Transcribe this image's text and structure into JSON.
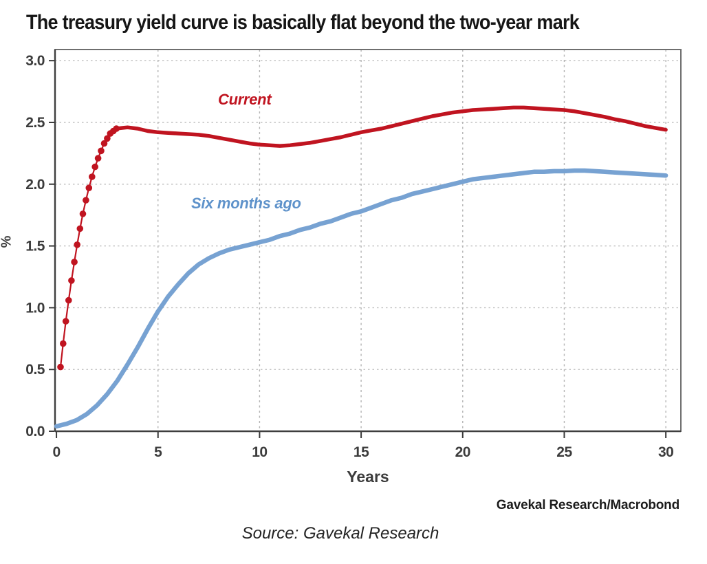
{
  "title": "The treasury yield curve is basically flat beyond the two-year mark",
  "branding": "Gavekal Research/Macrobond",
  "source_caption": "Source: Gavekal Research",
  "colors": {
    "current_red": "#c01420",
    "six_months_blue": "#77a2d2",
    "six_months_label_blue": "#5e92ca",
    "axis_text": "#3c3c3c",
    "gridline": "#b8b8b8"
  },
  "chart_data": {
    "type": "line",
    "title": "The treasury yield curve is basically flat beyond the two-year mark",
    "xlabel": "Years",
    "ylabel": "%",
    "xlim": [
      -0.07,
      30.74
    ],
    "ylim": [
      0,
      3.09
    ],
    "grid": {
      "vertical": "dashed",
      "horizontal": "dotted"
    },
    "legend_position": "inline-annotations",
    "xticks": [
      {
        "v": 0,
        "label": "0"
      },
      {
        "v": 5,
        "label": "5"
      },
      {
        "v": 10,
        "label": "10"
      },
      {
        "v": 15,
        "label": "15"
      },
      {
        "v": 20,
        "label": "20"
      },
      {
        "v": 25,
        "label": "25"
      },
      {
        "v": 30,
        "label": "30"
      }
    ],
    "yticks": [
      {
        "v": 0.0,
        "label": "0.0"
      },
      {
        "v": 0.5,
        "label": "0.5"
      },
      {
        "v": 1.0,
        "label": "1.0"
      },
      {
        "v": 1.5,
        "label": "1.5"
      },
      {
        "v": 2.0,
        "label": "2.0"
      },
      {
        "v": 2.5,
        "label": "2.5"
      },
      {
        "v": 3.0,
        "label": "3.0"
      }
    ],
    "annotations": [
      {
        "text": "Current",
        "color": "#c01420"
      },
      {
        "text": "Six months ago",
        "color": "#5e92ca"
      }
    ],
    "series": [
      {
        "name": "Six months ago",
        "color": "#77a2d2",
        "width": 6.5,
        "points": [
          [
            0,
            0.04
          ],
          [
            0.5,
            0.06
          ],
          [
            1,
            0.09
          ],
          [
            1.5,
            0.14
          ],
          [
            2,
            0.21
          ],
          [
            2.5,
            0.3
          ],
          [
            3,
            0.41
          ],
          [
            3.5,
            0.54
          ],
          [
            4,
            0.68
          ],
          [
            4.5,
            0.83
          ],
          [
            5,
            0.97
          ],
          [
            5.5,
            1.09
          ],
          [
            6,
            1.19
          ],
          [
            6.5,
            1.28
          ],
          [
            7,
            1.35
          ],
          [
            7.5,
            1.4
          ],
          [
            8,
            1.44
          ],
          [
            8.5,
            1.47
          ],
          [
            9,
            1.49
          ],
          [
            9.5,
            1.51
          ],
          [
            10,
            1.53
          ],
          [
            10.5,
            1.55
          ],
          [
            11,
            1.58
          ],
          [
            11.5,
            1.6
          ],
          [
            12,
            1.63
          ],
          [
            12.5,
            1.65
          ],
          [
            13,
            1.68
          ],
          [
            13.5,
            1.7
          ],
          [
            14,
            1.73
          ],
          [
            14.5,
            1.76
          ],
          [
            15,
            1.78
          ],
          [
            15.5,
            1.81
          ],
          [
            16,
            1.84
          ],
          [
            16.5,
            1.87
          ],
          [
            17,
            1.89
          ],
          [
            17.5,
            1.92
          ],
          [
            18,
            1.94
          ],
          [
            18.5,
            1.96
          ],
          [
            19,
            1.98
          ],
          [
            19.5,
            2.0
          ],
          [
            20,
            2.02
          ],
          [
            20.5,
            2.04
          ],
          [
            21,
            2.05
          ],
          [
            21.5,
            2.06
          ],
          [
            22,
            2.07
          ],
          [
            22.5,
            2.08
          ],
          [
            23,
            2.09
          ],
          [
            23.5,
            2.1
          ],
          [
            24,
            2.1
          ],
          [
            24.5,
            2.105
          ],
          [
            25,
            2.105
          ],
          [
            25.5,
            2.11
          ],
          [
            26,
            2.11
          ],
          [
            26.5,
            2.105
          ],
          [
            27,
            2.1
          ],
          [
            27.5,
            2.095
          ],
          [
            28,
            2.09
          ],
          [
            28.5,
            2.085
          ],
          [
            29,
            2.08
          ],
          [
            29.5,
            2.075
          ],
          [
            30,
            2.07
          ]
        ]
      },
      {
        "name": "Current",
        "color": "#c01420",
        "width": 5.5,
        "marker_until": 2.95,
        "marker_r": 4.8,
        "points": [
          [
            0.2,
            0.52
          ],
          [
            0.33,
            0.71
          ],
          [
            0.46,
            0.89
          ],
          [
            0.6,
            1.06
          ],
          [
            0.74,
            1.22
          ],
          [
            0.88,
            1.37
          ],
          [
            1.02,
            1.51
          ],
          [
            1.16,
            1.64
          ],
          [
            1.3,
            1.76
          ],
          [
            1.45,
            1.87
          ],
          [
            1.6,
            1.97
          ],
          [
            1.75,
            2.06
          ],
          [
            1.9,
            2.14
          ],
          [
            2.05,
            2.21
          ],
          [
            2.2,
            2.27
          ],
          [
            2.35,
            2.33
          ],
          [
            2.5,
            2.37
          ],
          [
            2.65,
            2.41
          ],
          [
            2.8,
            2.43
          ],
          [
            2.95,
            2.45
          ],
          [
            3.2,
            2.455
          ],
          [
            3.5,
            2.46
          ],
          [
            4,
            2.45
          ],
          [
            4.5,
            2.43
          ],
          [
            5,
            2.42
          ],
          [
            5.5,
            2.415
          ],
          [
            6,
            2.41
          ],
          [
            6.5,
            2.405
          ],
          [
            7,
            2.4
          ],
          [
            7.5,
            2.39
          ],
          [
            8,
            2.375
          ],
          [
            8.5,
            2.36
          ],
          [
            9,
            2.345
          ],
          [
            9.5,
            2.33
          ],
          [
            10,
            2.32
          ],
          [
            10.5,
            2.315
          ],
          [
            11,
            2.31
          ],
          [
            11.5,
            2.315
          ],
          [
            12,
            2.325
          ],
          [
            12.5,
            2.335
          ],
          [
            13,
            2.35
          ],
          [
            13.5,
            2.365
          ],
          [
            14,
            2.38
          ],
          [
            14.5,
            2.4
          ],
          [
            15,
            2.42
          ],
          [
            15.5,
            2.435
          ],
          [
            16,
            2.45
          ],
          [
            16.5,
            2.47
          ],
          [
            17,
            2.49
          ],
          [
            17.5,
            2.51
          ],
          [
            18,
            2.53
          ],
          [
            18.5,
            2.55
          ],
          [
            19,
            2.565
          ],
          [
            19.5,
            2.58
          ],
          [
            20,
            2.59
          ],
          [
            20.5,
            2.6
          ],
          [
            21,
            2.605
          ],
          [
            21.5,
            2.61
          ],
          [
            22,
            2.615
          ],
          [
            22.5,
            2.62
          ],
          [
            23,
            2.62
          ],
          [
            23.5,
            2.615
          ],
          [
            24,
            2.61
          ],
          [
            24.5,
            2.605
          ],
          [
            25,
            2.6
          ],
          [
            25.5,
            2.59
          ],
          [
            26,
            2.575
          ],
          [
            26.5,
            2.56
          ],
          [
            27,
            2.545
          ],
          [
            27.5,
            2.525
          ],
          [
            28,
            2.51
          ],
          [
            28.5,
            2.49
          ],
          [
            29,
            2.47
          ],
          [
            29.5,
            2.455
          ],
          [
            30,
            2.44
          ]
        ]
      }
    ]
  }
}
